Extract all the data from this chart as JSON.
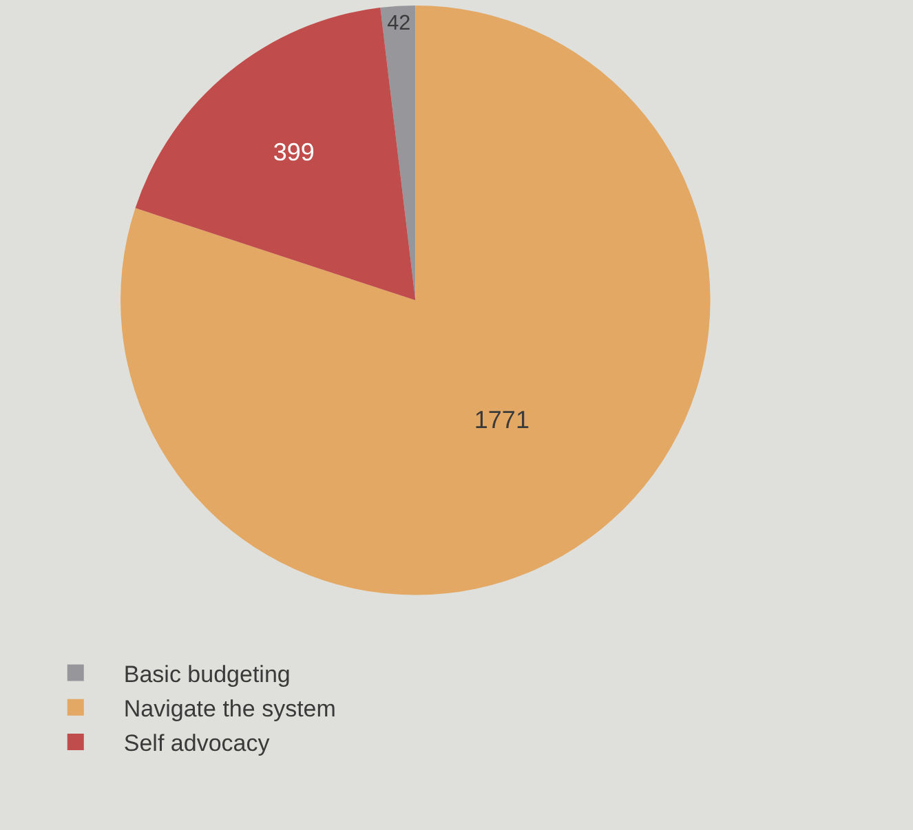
{
  "chart_data": {
    "type": "pie",
    "categories": [
      "Basic budgeting",
      "Navigate the system",
      "Self advocacy"
    ],
    "values": [
      42,
      1771,
      399
    ],
    "colors": [
      "#97979b",
      "#e3a864",
      "#c04d4b"
    ],
    "data_labels": true,
    "legend": "bottom"
  }
}
